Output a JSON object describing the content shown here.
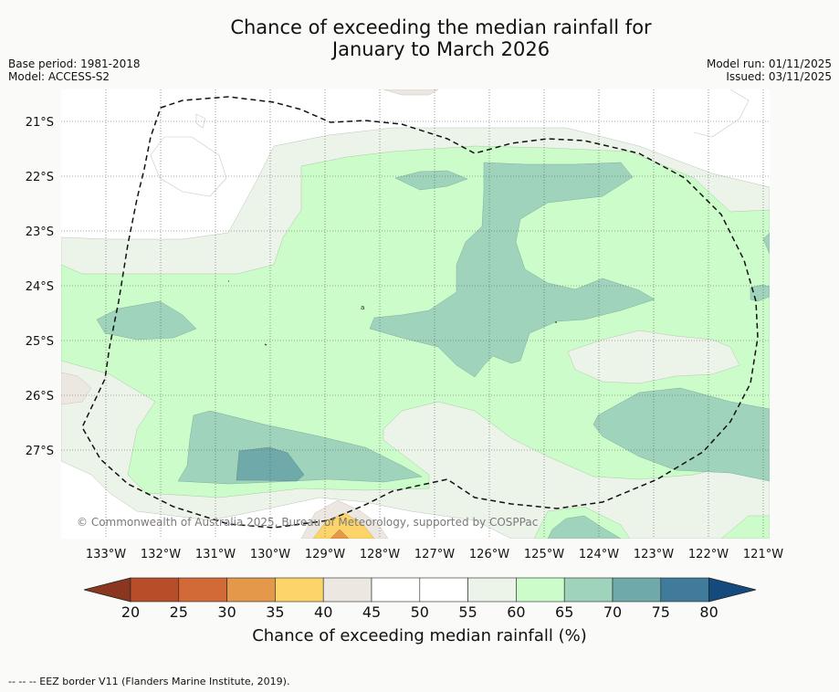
{
  "title": {
    "line1": "Chance of exceeding the median rainfall for",
    "line2": "January to March 2026"
  },
  "meta_left": {
    "base_period": "Base period: 1981-2018",
    "model": "Model: ACCESS-S2"
  },
  "meta_right": {
    "model_run": "Model run: 01/11/2025",
    "issued": "Issued: 03/11/2025"
  },
  "map": {
    "lat_labels": [
      "21°S",
      "22°S",
      "23°S",
      "24°S",
      "25°S",
      "26°S",
      "27°S"
    ],
    "lon_labels": [
      "133°W",
      "132°W",
      "131°W",
      "130°W",
      "129°W",
      "128°W",
      "127°W",
      "126°W",
      "125°W",
      "124°W",
      "123°W",
      "122°W",
      "121°W"
    ],
    "copyright": "© Commonwealth of Australia 2025, Bureau of Meteorology, supported by COSPPac"
  },
  "colorbar": {
    "ticks": [
      "20",
      "25",
      "30",
      "35",
      "40",
      "45",
      "50",
      "55",
      "60",
      "65",
      "70",
      "75",
      "80"
    ],
    "colors": [
      "#8b3720",
      "#b84d2a",
      "#d16a36",
      "#e4984a",
      "#fdd46a",
      "#ece8e1",
      "#ffffff",
      "#ffffff",
      "#ecf4ea",
      "#ccfcca",
      "#9fd3bc",
      "#6fa9aa",
      "#417b9c",
      "#154a7e"
    ],
    "title": "Chance of exceeding median rainfall (%)"
  },
  "footer": "-- -- -- EEZ border V11 (Flanders Marine Institute, 2019)."
}
